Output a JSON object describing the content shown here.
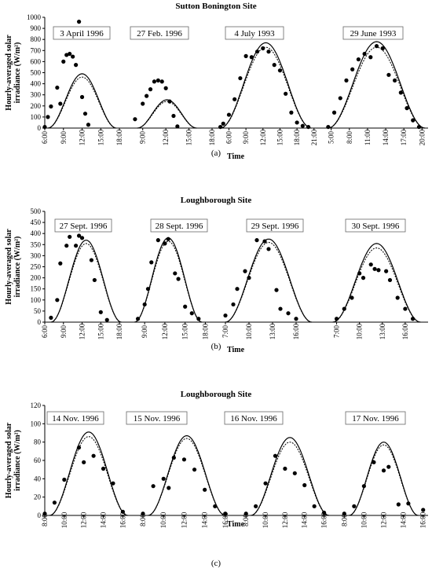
{
  "chart_data": [
    {
      "type": "line",
      "title": "Sutton Bonington Site",
      "caption": "(a)",
      "xlabel": "Time",
      "ylabel": "Hourly-averaged solar irradiance (W/m²)",
      "ylim": [
        0,
        1000
      ],
      "yticks": [
        0,
        100,
        200,
        300,
        400,
        500,
        600,
        700,
        800,
        900,
        1000
      ],
      "days": [
        {
          "label": "3 April 1996",
          "x_ticks": [
            "6:00",
            "9:00",
            "12:00",
            "15:00",
            "18:00"
          ],
          "x_range": [
            6,
            19
          ],
          "measured": [
            [
              6,
              10
            ],
            [
              6.5,
              100
            ],
            [
              7,
              195
            ],
            [
              8,
              365
            ],
            [
              8.5,
              220
            ],
            [
              9,
              600
            ],
            [
              9.5,
              660
            ],
            [
              10,
              670
            ],
            [
              10.5,
              645
            ],
            [
              11,
              570
            ],
            [
              11.5,
              960
            ],
            [
              12,
              280
            ],
            [
              12.5,
              130
            ],
            [
              13,
              30
            ]
          ],
          "model_solid": {
            "sunrise": 6.5,
            "sunset": 17.5,
            "peak": 490
          },
          "model_dotted": {
            "sunrise": 6.5,
            "sunset": 17.5,
            "peak": 460
          }
        },
        {
          "label": "27 Feb. 1996",
          "x_ticks": [
            "9:00",
            "12:00",
            "15:00",
            "18:00"
          ],
          "x_range": [
            7.5,
            18
          ],
          "measured": [
            [
              8,
              80
            ],
            [
              9,
              220
            ],
            [
              9.5,
              290
            ],
            [
              10,
              350
            ],
            [
              10.5,
              420
            ],
            [
              11,
              430
            ],
            [
              11.5,
              420
            ],
            [
              12,
              360
            ],
            [
              12.5,
              240
            ],
            [
              13,
              110
            ],
            [
              13.5,
              15
            ]
          ],
          "model_solid": {
            "sunrise": 8.3,
            "sunset": 16,
            "peak": 255
          },
          "model_dotted": {
            "sunrise": 8.3,
            "sunset": 16,
            "peak": 240
          }
        },
        {
          "label": "4 July 1993",
          "x_ticks": [
            "6:00",
            "9:00",
            "12:00",
            "15:00",
            "18:00",
            "21:00"
          ],
          "x_range": [
            4,
            22
          ],
          "measured": [
            [
              4.5,
              10
            ],
            [
              5,
              40
            ],
            [
              6,
              120
            ],
            [
              7,
              260
            ],
            [
              8,
              450
            ],
            [
              9,
              650
            ],
            [
              10,
              640
            ],
            [
              11,
              690
            ],
            [
              12,
              720
            ],
            [
              13,
              690
            ],
            [
              14,
              570
            ],
            [
              15,
              520
            ],
            [
              16,
              310
            ],
            [
              17,
              140
            ],
            [
              18,
              50
            ],
            [
              19,
              20
            ],
            [
              20,
              10
            ]
          ],
          "model_solid": {
            "sunrise": 4.5,
            "sunset": 20.5,
            "peak": 770
          },
          "model_dotted": {
            "sunrise": 4.5,
            "sunset": 20.5,
            "peak": 730
          }
        },
        {
          "label": "29 June 1993",
          "x_ticks": [
            "5:00",
            "8:00",
            "11:00",
            "14:00",
            "17:00",
            "20:00"
          ],
          "x_range": [
            4,
            21
          ],
          "measured": [
            [
              4.5,
              10
            ],
            [
              5.5,
              140
            ],
            [
              6.5,
              270
            ],
            [
              7.5,
              430
            ],
            [
              8.5,
              530
            ],
            [
              9.5,
              620
            ],
            [
              10.5,
              670
            ],
            [
              11.5,
              640
            ],
            [
              12.5,
              740
            ],
            [
              13.5,
              720
            ],
            [
              14.5,
              480
            ],
            [
              15.5,
              430
            ],
            [
              16.5,
              320
            ],
            [
              17.5,
              180
            ],
            [
              18.5,
              70
            ],
            [
              19.5,
              10
            ]
          ],
          "model_solid": {
            "sunrise": 4.5,
            "sunset": 20.5,
            "peak": 780
          },
          "model_dotted": {
            "sunrise": 4.5,
            "sunset": 20.5,
            "peak": 730
          }
        }
      ]
    },
    {
      "type": "line",
      "title": "Loughborough Site",
      "caption": "(b)",
      "xlabel": "Time",
      "ylabel": "Hourly-averaged solar irradiance (W/m²)",
      "ylim": [
        0,
        500
      ],
      "yticks": [
        0,
        50,
        100,
        150,
        200,
        250,
        300,
        350,
        400,
        450,
        500
      ],
      "days": [
        {
          "label": "27 Sept. 1996",
          "x_ticks": [
            "6:00",
            "9:00",
            "12:00",
            "15:00",
            "18:00"
          ],
          "x_range": [
            6,
            19
          ],
          "measured": [
            [
              7,
              20
            ],
            [
              8,
              100
            ],
            [
              8.5,
              265
            ],
            [
              9.5,
              345
            ],
            [
              10,
              385
            ],
            [
              11,
              345
            ],
            [
              11.5,
              390
            ],
            [
              12,
              380
            ],
            [
              13.5,
              280
            ],
            [
              14,
              190
            ],
            [
              15,
              45
            ],
            [
              16,
              10
            ]
          ],
          "model_solid": {
            "sunrise": 7,
            "sunset": 18.3,
            "peak": 370
          },
          "model_dotted": {
            "sunrise": 7,
            "sunset": 18.3,
            "peak": 355
          }
        },
        {
          "label": "28 Sept. 1996",
          "x_ticks": [
            "9:00",
            "12:00",
            "15:00",
            "18:00"
          ],
          "x_range": [
            7,
            19
          ],
          "measured": [
            [
              8,
              15
            ],
            [
              9,
              80
            ],
            [
              9.5,
              150
            ],
            [
              10,
              270
            ],
            [
              11,
              370
            ],
            [
              12,
              355
            ],
            [
              12.5,
              375
            ],
            [
              13.5,
              220
            ],
            [
              14,
              195
            ],
            [
              15,
              70
            ],
            [
              16,
              40
            ],
            [
              17,
              15
            ]
          ],
          "model_solid": {
            "sunrise": 7.5,
            "sunset": 17.5,
            "peak": 380
          },
          "model_dotted": {
            "sunrise": 7.5,
            "sunset": 17.5,
            "peak": 365
          }
        },
        {
          "label": "29 Sept. 1996",
          "x_ticks": [
            "7:00",
            "10:00",
            "13:00",
            "16:00"
          ],
          "x_range": [
            6,
            19
          ],
          "measured": [
            [
              7,
              30
            ],
            [
              8,
              80
            ],
            [
              8.5,
              150
            ],
            [
              9.5,
              230
            ],
            [
              10,
              200
            ],
            [
              11,
              370
            ],
            [
              12,
              365
            ],
            [
              12.5,
              330
            ],
            [
              13.5,
              145
            ],
            [
              14,
              60
            ],
            [
              15,
              40
            ],
            [
              16,
              15
            ]
          ],
          "model_solid": {
            "sunrise": 7,
            "sunset": 18,
            "peak": 375
          },
          "model_dotted": {
            "sunrise": 7,
            "sunset": 18,
            "peak": 360
          }
        },
        {
          "label": "30 Sept. 1996",
          "x_ticks": [
            "7:00",
            "10:00",
            "13:00",
            "16:00"
          ],
          "x_range": [
            5.5,
            19
          ],
          "measured": [
            [
              7,
              15
            ],
            [
              8,
              60
            ],
            [
              9,
              110
            ],
            [
              10,
              220
            ],
            [
              10.5,
              200
            ],
            [
              11.5,
              260
            ],
            [
              12,
              240
            ],
            [
              12.5,
              235
            ],
            [
              13.5,
              230
            ],
            [
              14,
              190
            ],
            [
              15,
              110
            ],
            [
              16,
              60
            ],
            [
              17,
              15
            ]
          ],
          "model_solid": {
            "sunrise": 6.5,
            "sunset": 18,
            "peak": 355
          },
          "model_dotted": {
            "sunrise": 6.5,
            "sunset": 18,
            "peak": 335
          }
        }
      ]
    },
    {
      "type": "line",
      "title": "Loughborough Site",
      "caption": "(c)",
      "xlabel": "Time",
      "ylabel": "Hourly-averaged solar irradiance (W/m²)",
      "ylim": [
        0,
        120
      ],
      "yticks": [
        0,
        20,
        40,
        60,
        80,
        100,
        120
      ],
      "days": [
        {
          "label": "14 Nov. 1996",
          "x_ticks": [
            "8:00",
            "10:00",
            "12:00",
            "14:00",
            "16:00"
          ],
          "x_range": [
            8,
            17.5
          ],
          "measured": [
            [
              8,
              2
            ],
            [
              9,
              14
            ],
            [
              10,
              39
            ],
            [
              11.5,
              74
            ],
            [
              12,
              58
            ],
            [
              13,
              65
            ],
            [
              14,
              51
            ],
            [
              15,
              35
            ],
            [
              16,
              4
            ]
          ],
          "model_solid": {
            "sunrise": 8.5,
            "sunset": 16.5,
            "peak": 91
          },
          "model_dotted": {
            "sunrise": 8.5,
            "sunset": 16.5,
            "peak": 86
          }
        },
        {
          "label": "15 Nov. 1996",
          "x_ticks": [
            "8:00",
            "10:00",
            "12:00",
            "14:00",
            "16:00"
          ],
          "x_range": [
            8,
            17
          ],
          "measured": [
            [
              8,
              2
            ],
            [
              9,
              32
            ],
            [
              10,
              40
            ],
            [
              10.5,
              30
            ],
            [
              11,
              63
            ],
            [
              12,
              61
            ],
            [
              13,
              50
            ],
            [
              14,
              28
            ],
            [
              15,
              10
            ],
            [
              16,
              2
            ]
          ],
          "model_solid": {
            "sunrise": 8.5,
            "sunset": 16,
            "peak": 87
          },
          "model_dotted": {
            "sunrise": 8.5,
            "sunset": 16,
            "peak": 84
          }
        },
        {
          "label": "16 Nov. 1996",
          "x_ticks": [
            "8:00",
            "10:00",
            "12:00",
            "14:00",
            "16:00"
          ],
          "x_range": [
            7.5,
            17
          ],
          "measured": [
            [
              8,
              2
            ],
            [
              9,
              10
            ],
            [
              10,
              35
            ],
            [
              11,
              65
            ],
            [
              12,
              51
            ],
            [
              13,
              46
            ],
            [
              14,
              33
            ],
            [
              15,
              10
            ],
            [
              16,
              3
            ]
          ],
          "model_solid": {
            "sunrise": 8.5,
            "sunset": 16.5,
            "peak": 85
          },
          "model_dotted": {
            "sunrise": 8.5,
            "sunset": 16.5,
            "peak": 80
          }
        },
        {
          "label": "17 Nov. 1996",
          "x_ticks": [
            "8:00",
            "10:00",
            "12:00",
            "14:00",
            "16:00"
          ],
          "x_range": [
            7.5,
            16.5
          ],
          "measured": [
            [
              8,
              2
            ],
            [
              9,
              10
            ],
            [
              10,
              32
            ],
            [
              11,
              58
            ],
            [
              12,
              49
            ],
            [
              12.5,
              53
            ],
            [
              13.5,
              12
            ],
            [
              14.5,
              13
            ],
            [
              16,
              6
            ]
          ],
          "model_solid": {
            "sunrise": 8.5,
            "sunset": 15.5,
            "peak": 80
          },
          "model_dotted": {
            "sunrise": 8.5,
            "sunset": 15.5,
            "peak": 77
          }
        }
      ]
    }
  ]
}
